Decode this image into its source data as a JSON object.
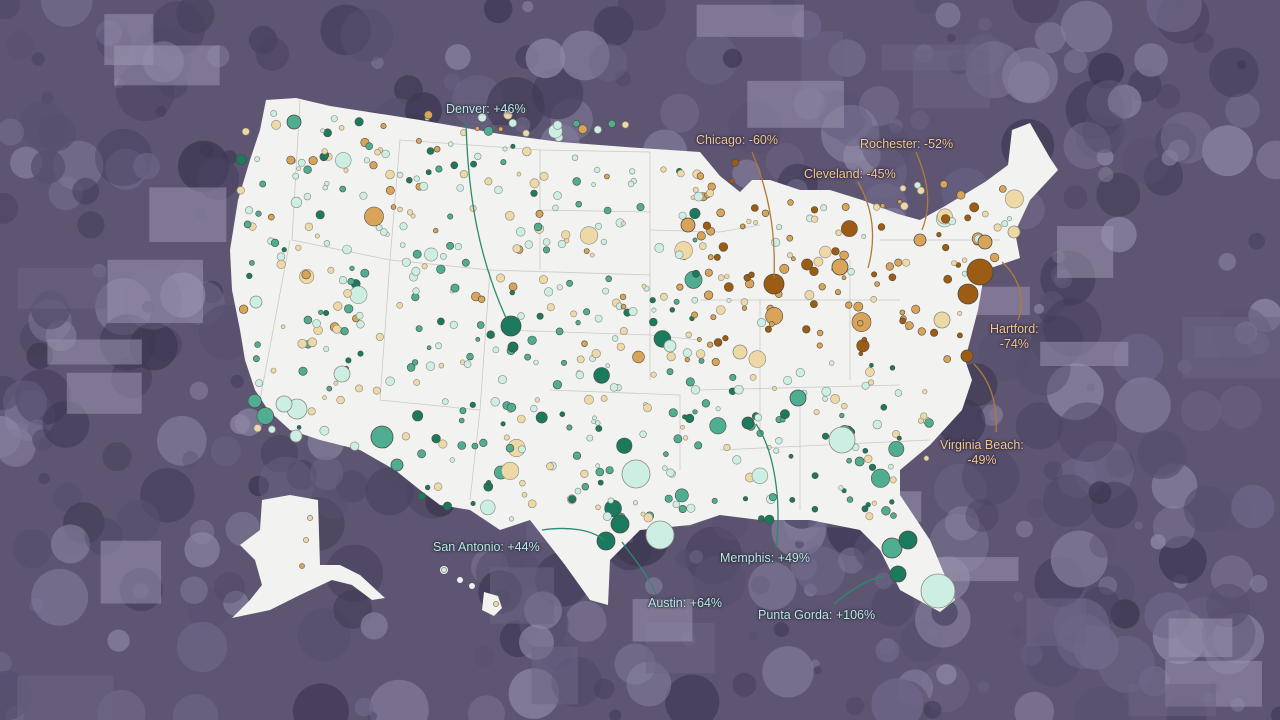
{
  "colors": {
    "background_tint": "#5d5572",
    "land": "#f2f2f0",
    "strong_positive": "#1b7a5e",
    "positive": "#4fae91",
    "mild_positive": "#cdeee2",
    "mild_negative": "#eed8a6",
    "negative": "#d9a45a",
    "strong_negative": "#9c5c14",
    "positive_label": "#b7ecdc",
    "negative_label": "#f3c98c"
  },
  "annotations": [
    {
      "id": "denver",
      "text": "Denver: +46%",
      "change_percent": 46,
      "trend": "positive"
    },
    {
      "id": "chicago",
      "text": "Chicago: -60%",
      "change_percent": -60,
      "trend": "negative"
    },
    {
      "id": "rochester",
      "text": "Rochester: -52%",
      "change_percent": -52,
      "trend": "negative"
    },
    {
      "id": "cleveland",
      "text": "Cleveland: -45%",
      "change_percent": -45,
      "trend": "negative"
    },
    {
      "id": "hartford",
      "text": "Hartford:",
      "text2": "-74%",
      "change_percent": -74,
      "trend": "negative"
    },
    {
      "id": "virginia-beach",
      "text": "Virginia Beach:",
      "text2": "-49%",
      "change_percent": -49,
      "trend": "negative"
    },
    {
      "id": "san-antonio",
      "text": "San Antonio: +44%",
      "change_percent": 44,
      "trend": "positive"
    },
    {
      "id": "austin",
      "text": "Austin: +64%",
      "change_percent": 64,
      "trend": "positive"
    },
    {
      "id": "memphis",
      "text": "Memphis: +49%",
      "change_percent": 49,
      "trend": "positive"
    },
    {
      "id": "punta-gorda",
      "text": "Punta Gorda: +106%",
      "change_percent": 106,
      "trend": "positive"
    }
  ]
}
